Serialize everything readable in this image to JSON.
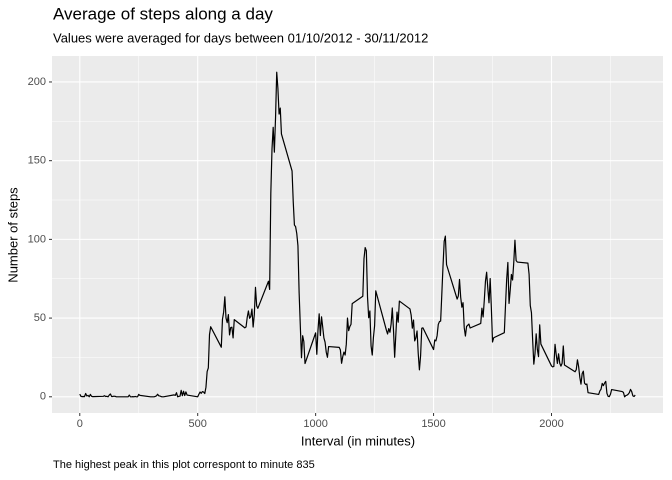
{
  "chart_data": {
    "type": "line",
    "title": "Average of steps along a day",
    "subtitle": "Values were averaged for days between 01/10/2012 - 30/11/2012",
    "x_label": "Interval (in minutes)",
    "y_label": "Number of steps",
    "caption": "The highest peak in this plot correspont to minute 835",
    "color": "#000000",
    "grid": true,
    "xlim": [
      -117.75,
      2472.75
    ],
    "xticks": [
      0,
      500,
      1000,
      1500,
      2000
    ],
    "xminor": [
      250,
      750,
      1250,
      1750,
      2250
    ],
    "ylim": [
      -10.3,
      216.5
    ],
    "yticks": [
      0,
      50,
      100,
      150,
      200
    ],
    "yminor": [
      25,
      75,
      125,
      175
    ],
    "x": [
      0,
      5,
      10,
      15,
      20,
      25,
      30,
      35,
      40,
      45,
      50,
      55,
      100,
      105,
      110,
      115,
      120,
      125,
      130,
      135,
      140,
      145,
      150,
      155,
      200,
      205,
      210,
      215,
      220,
      225,
      230,
      235,
      240,
      245,
      250,
      255,
      300,
      305,
      310,
      315,
      320,
      325,
      330,
      335,
      340,
      345,
      350,
      355,
      400,
      405,
      410,
      415,
      420,
      425,
      430,
      435,
      440,
      445,
      450,
      455,
      500,
      505,
      510,
      515,
      520,
      525,
      530,
      535,
      540,
      545,
      550,
      555,
      600,
      605,
      610,
      615,
      620,
      625,
      630,
      635,
      640,
      645,
      650,
      655,
      700,
      705,
      710,
      715,
      720,
      725,
      730,
      735,
      740,
      745,
      750,
      755,
      800,
      805,
      810,
      815,
      820,
      825,
      830,
      835,
      840,
      845,
      850,
      855,
      900,
      905,
      910,
      915,
      920,
      925,
      930,
      935,
      940,
      945,
      950,
      955,
      1000,
      1005,
      1010,
      1015,
      1020,
      1025,
      1030,
      1035,
      1040,
      1045,
      1050,
      1055,
      1100,
      1105,
      1110,
      1115,
      1120,
      1125,
      1130,
      1135,
      1140,
      1145,
      1150,
      1155,
      1200,
      1205,
      1210,
      1215,
      1220,
      1225,
      1230,
      1235,
      1240,
      1245,
      1250,
      1255,
      1300,
      1305,
      1310,
      1315,
      1320,
      1325,
      1330,
      1335,
      1340,
      1345,
      1350,
      1355,
      1400,
      1405,
      1410,
      1415,
      1420,
      1425,
      1430,
      1435,
      1440,
      1445,
      1450,
      1455,
      1500,
      1505,
      1510,
      1515,
      1520,
      1525,
      1530,
      1535,
      1540,
      1545,
      1550,
      1555,
      1600,
      1605,
      1610,
      1615,
      1620,
      1625,
      1630,
      1635,
      1640,
      1645,
      1650,
      1655,
      1700,
      1705,
      1710,
      1715,
      1720,
      1725,
      1730,
      1735,
      1740,
      1745,
      1750,
      1755,
      1800,
      1805,
      1810,
      1815,
      1820,
      1825,
      1830,
      1835,
      1840,
      1845,
      1850,
      1855,
      1900,
      1905,
      1910,
      1915,
      1920,
      1925,
      1930,
      1935,
      1940,
      1945,
      1950,
      1955,
      2000,
      2005,
      2010,
      2015,
      2020,
      2025,
      2030,
      2035,
      2040,
      2045,
      2050,
      2055,
      2100,
      2105,
      2110,
      2115,
      2120,
      2125,
      2130,
      2135,
      2140,
      2145,
      2150,
      2155,
      2200,
      2205,
      2210,
      2215,
      2220,
      2225,
      2230,
      2235,
      2240,
      2245,
      2250,
      2255,
      2300,
      2305,
      2310,
      2315,
      2320,
      2325,
      2330,
      2335,
      2340,
      2345,
      2350,
      2355
    ],
    "values": [
      1.7,
      0.3,
      0.1,
      0.2,
      0.1,
      2.1,
      0.5,
      0.9,
      0,
      1.5,
      0.3,
      0.1,
      0.3,
      0.7,
      0.2,
      0.3,
      0,
      1.1,
      1.8,
      0.2,
      0.2,
      0.4,
      0.3,
      0,
      0,
      0,
      1.1,
      0,
      0,
      0.1,
      0,
      0.2,
      0,
      0,
      1.5,
      0.9,
      0,
      0,
      0,
      0,
      0.2,
      0.6,
      1.6,
      0.6,
      0.5,
      0.1,
      0,
      0,
      1.2,
      0.9,
      2.6,
      0,
      0.3,
      0.4,
      4.1,
      0.7,
      3.5,
      0.8,
      3.1,
      1.1,
      0,
      1.6,
      3,
      2.2,
      3.3,
      3,
      2.1,
      6.1,
      16,
      18.3,
      39.5,
      44.5,
      31.5,
      49.3,
      53.8,
      63.5,
      50,
      47.1,
      52.2,
      39.3,
      44,
      44.2,
      37.4,
      49,
      43.8,
      44.4,
      50.5,
      54.5,
      49.9,
      51,
      55.7,
      44.3,
      52.3,
      69.5,
      57.8,
      56.2,
      73.4,
      68.2,
      129.4,
      157.5,
      171.2,
      155.4,
      177.3,
      206.2,
      195.9,
      179.6,
      183.4,
      167,
      143.5,
      124,
      109.1,
      108.1,
      103.7,
      95.97,
      66.2,
      45.2,
      24.8,
      38.8,
      35,
      21.1,
      40.6,
      26.98,
      42.4,
      52.7,
      38.9,
      50.8,
      44.3,
      37.4,
      34.7,
      28.3,
      25.1,
      31.9,
      31.4,
      29.7,
      21.3,
      25.5,
      28.4,
      26.5,
      33.4,
      50,
      42,
      44.6,
      46,
      59.2,
      63.9,
      87.7,
      94.8,
      92.8,
      63.4,
      50.2,
      54.5,
      32.4,
      26.5,
      37.7,
      45.1,
      67.3,
      42.3,
      39.9,
      43.3,
      41,
      46.2,
      56.4,
      42.8,
      25.1,
      39.5,
      53.8,
      47.4,
      60.8,
      55.8,
      51.9,
      43.6,
      48.7,
      35.5,
      37.5,
      41.8,
      27.5,
      17.1,
      26.1,
      43.6,
      43.8,
      30,
      36.1,
      35.5,
      38.8,
      45.96,
      47.8,
      48.1,
      65.3,
      82.9,
      98.7,
      102.1,
      83.96,
      62.1,
      64.1,
      74.5,
      63.2,
      56.9,
      59.8,
      43.9,
      38.6,
      44.7,
      45.5,
      46.2,
      43.7,
      46.6,
      56.3,
      50.7,
      61.2,
      73.4,
      79.1,
      68.9,
      59.7,
      75.1,
      56.5,
      34.8,
      37.5,
      40.7,
      58,
      74.7,
      85.3,
      59.3,
      67.8,
      77.7,
      74.2,
      85.3,
      99.5,
      86.6,
      85.6,
      84.9,
      77.8,
      58,
      53.4,
      36.3,
      20.7,
      27.4,
      40,
      30.2,
      25.5,
      45.7,
      33.5,
      19.6,
      19,
      19.3,
      33.3,
      26.8,
      21.2,
      27.3,
      21.3,
      19.5,
      21.3,
      32.3,
      20.2,
      15.9,
      17.2,
      23.5,
      19.2,
      12.5,
      8,
      14.7,
      16.3,
      8.7,
      7.8,
      8.1,
      2.6,
      1.5,
      3.7,
      4.8,
      8.5,
      7.1,
      8.7,
      9.8,
      2.2,
      0.3,
      0.1,
      1.6,
      4.6,
      3.3,
      2.8,
      0,
      0.8,
      1,
      1.6,
      2.6,
      4.7,
      3.3,
      0.6,
      0.2,
      1.1
    ]
  }
}
